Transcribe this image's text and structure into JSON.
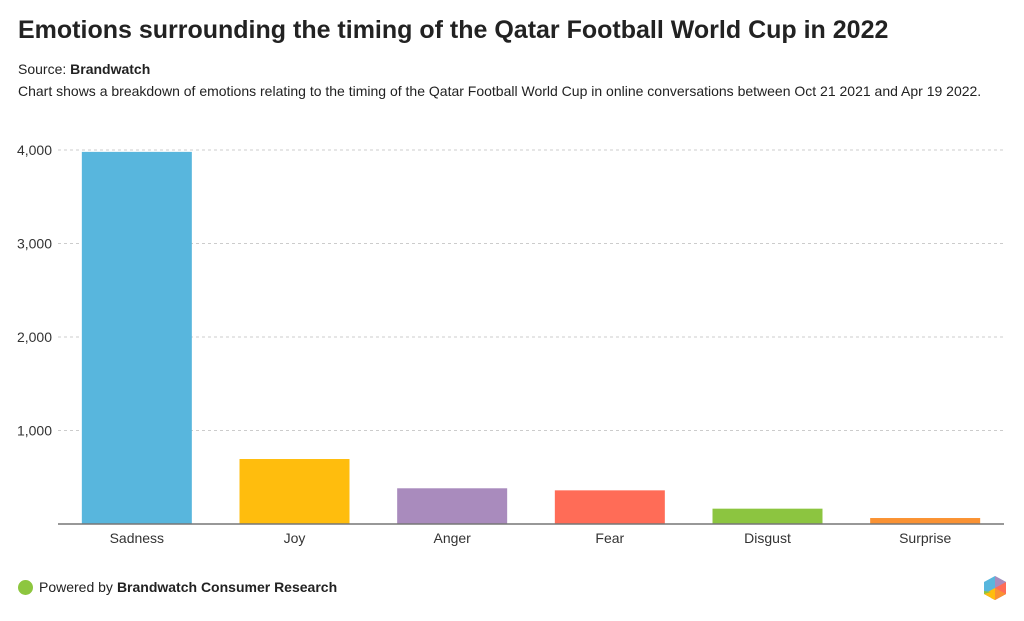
{
  "title": "Emotions surrounding the timing of the Qatar Football World Cup in 2022",
  "source_label": "Source:",
  "source_name": "Brandwatch",
  "description": "Chart shows a breakdown of emotions relating to the timing of the Qatar Football World Cup in online conversations between Oct 21 2021 and Apr 19 2022.",
  "footer": {
    "prefix": "Powered by",
    "brand": "Brandwatch Consumer Research",
    "icon": "brandwatch-hexagon-logo",
    "dot_color": "#8dc63f"
  },
  "chart_data": {
    "type": "bar",
    "title": "Emotions surrounding the timing of the Qatar Football World Cup in 2022",
    "xlabel": "",
    "ylabel": "",
    "categories": [
      "Sadness",
      "Joy",
      "Anger",
      "Fear",
      "Disgust",
      "Surprise"
    ],
    "values": [
      3980,
      695,
      382,
      360,
      164,
      64
    ],
    "colors": [
      "#58b6dd",
      "#ffbd0d",
      "#a98bbd",
      "#ff6c57",
      "#8cc540",
      "#fa9233"
    ],
    "ylim": [
      0,
      4000
    ],
    "yticks": [
      1000,
      2000,
      3000,
      4000
    ],
    "ytick_labels": [
      "1,000",
      "2,000",
      "3,000",
      "4,000"
    ],
    "grid": true,
    "legend": "none"
  }
}
